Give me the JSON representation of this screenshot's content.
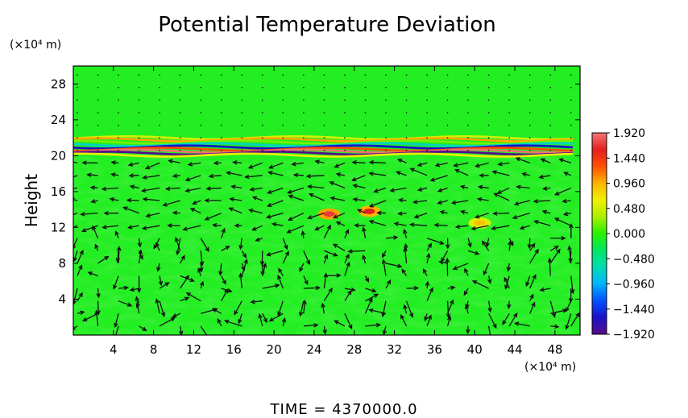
{
  "chart_data": {
    "type": "heatmap",
    "title": "Potential Temperature Deviation",
    "ylabel": "Height",
    "x_unit_label": "(×10⁴ m)",
    "y_unit_label": "(×10⁴ m)",
    "footer": "TIME  =  4370000.0",
    "x_ticks": [
      "4",
      "8",
      "12",
      "16",
      "20",
      "24",
      "28",
      "32",
      "36",
      "40",
      "44",
      "48"
    ],
    "x_tick_values": [
      4,
      8,
      12,
      16,
      20,
      24,
      28,
      32,
      36,
      40,
      44,
      48
    ],
    "xlim": [
      0,
      50.5
    ],
    "y_ticks": [
      "4",
      "8",
      "12",
      "16",
      "20",
      "24",
      "28"
    ],
    "y_tick_values": [
      4,
      8,
      12,
      16,
      20,
      24,
      28
    ],
    "ylim": [
      0,
      30
    ],
    "colorbar": {
      "ticks": [
        "1.920",
        "1.440",
        "0.960",
        "0.480",
        "0.000",
        "−0.480",
        "−0.960",
        "−1.440",
        "−1.920"
      ],
      "tick_values": [
        1.92,
        1.44,
        0.96,
        0.48,
        0.0,
        -0.48,
        -0.96,
        -1.44,
        -1.92
      ],
      "range": [
        -1.92,
        1.92
      ],
      "colors": [
        "#5a0a8c",
        "#1a10c8",
        "#0050ff",
        "#00b4ff",
        "#00dcb4",
        "#00e664",
        "#28f000",
        "#aaf000",
        "#f0f000",
        "#ffb400",
        "#ff5000",
        "#e61e1e",
        "#f07878"
      ]
    },
    "background_value": 0.1,
    "background_color": "#22ee22",
    "features": [
      {
        "name": "tropopause band",
        "y_range": [
          19.8,
          22.0
        ],
        "min": -1.9,
        "max": 1.9
      },
      {
        "name": "warm anomaly",
        "x": 25.5,
        "y": 13.5,
        "value": 1.7
      },
      {
        "name": "warm anomaly",
        "x": 29.5,
        "y": 13.8,
        "value": 1.6
      },
      {
        "name": "warm anomaly",
        "x": 40.5,
        "y": 12.5,
        "value": 0.9
      }
    ],
    "vector_field": true
  }
}
